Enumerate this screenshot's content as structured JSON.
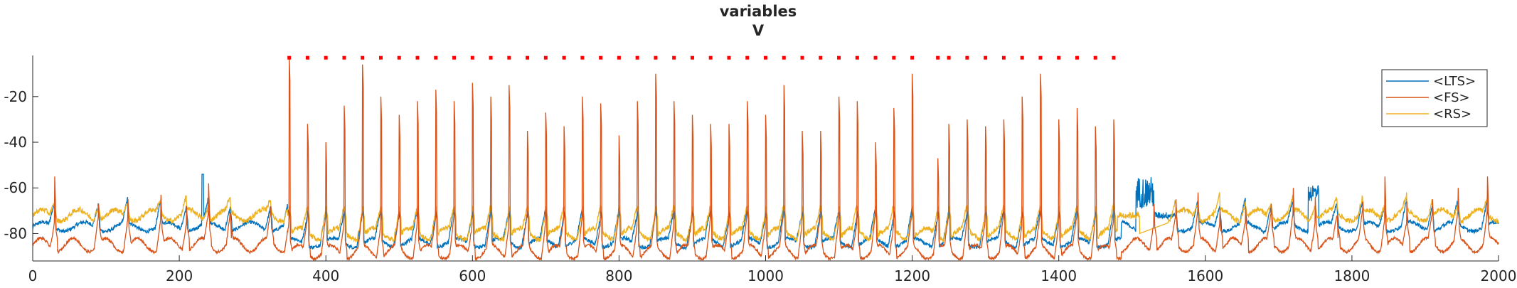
{
  "chart_data": {
    "type": "line",
    "title": "variables",
    "subtitle": "V",
    "xlabel": "",
    "ylabel": "",
    "xlim": [
      0,
      2000
    ],
    "ylim": [
      -92,
      -2
    ],
    "x_ticks": [
      0,
      200,
      400,
      600,
      800,
      1000,
      1200,
      1400,
      1600,
      1800,
      2000
    ],
    "y_ticks": [
      -80,
      -60,
      -40,
      -20
    ],
    "grid": false,
    "legend_position": "top-right",
    "series": [
      {
        "name": "<LTS>",
        "color": "#0072BD"
      },
      {
        "name": "<FS>",
        "color": "#D95319"
      },
      {
        "name": "<RS>",
        "color": "#EDB120"
      }
    ],
    "spike_marker_color": "#FF0000",
    "spike_marker_value": -3,
    "spike_times": [
      350,
      375,
      400,
      425,
      450,
      475,
      500,
      525,
      550,
      575,
      600,
      625,
      650,
      675,
      700,
      725,
      750,
      775,
      800,
      825,
      850,
      875,
      900,
      925,
      950,
      975,
      1000,
      1025,
      1050,
      1075,
      1100,
      1125,
      1150,
      1175,
      1200,
      1235,
      1250,
      1275,
      1300,
      1325,
      1350,
      1375,
      1400,
      1425,
      1450,
      1475
    ],
    "burst_start": 348,
    "burst_end": 1485,
    "fs_peaks_burst": [
      -3,
      -32,
      -40,
      -24,
      -6,
      -20,
      -28,
      -22,
      -17,
      -22,
      -14,
      -20,
      -15,
      -35,
      -27,
      -33,
      -20,
      -23,
      -37,
      -22,
      -10,
      -22,
      -28,
      -32,
      -32,
      -22,
      -28,
      -15,
      -35,
      -35,
      -20,
      -22,
      -40,
      -25,
      -10,
      -47,
      -32,
      -30,
      -33,
      -30,
      -20,
      -10,
      -30,
      -25,
      -33,
      -30
    ],
    "fs_peaks_quiet_times": [
      30,
      90,
      130,
      175,
      210,
      240,
      270,
      325,
      1530,
      1560,
      1590,
      1620,
      1655,
      1690,
      1720,
      1750,
      1780,
      1815,
      1845,
      1875,
      1910,
      1945,
      1985
    ],
    "fs_peaks_quiet": [
      -55,
      -67,
      -65,
      -63,
      -68,
      -58,
      -72,
      -68,
      -67,
      -65,
      -62,
      -69,
      -68,
      -67,
      -60,
      -64,
      -72,
      -66,
      -55,
      -66,
      -65,
      -60,
      -55
    ]
  }
}
